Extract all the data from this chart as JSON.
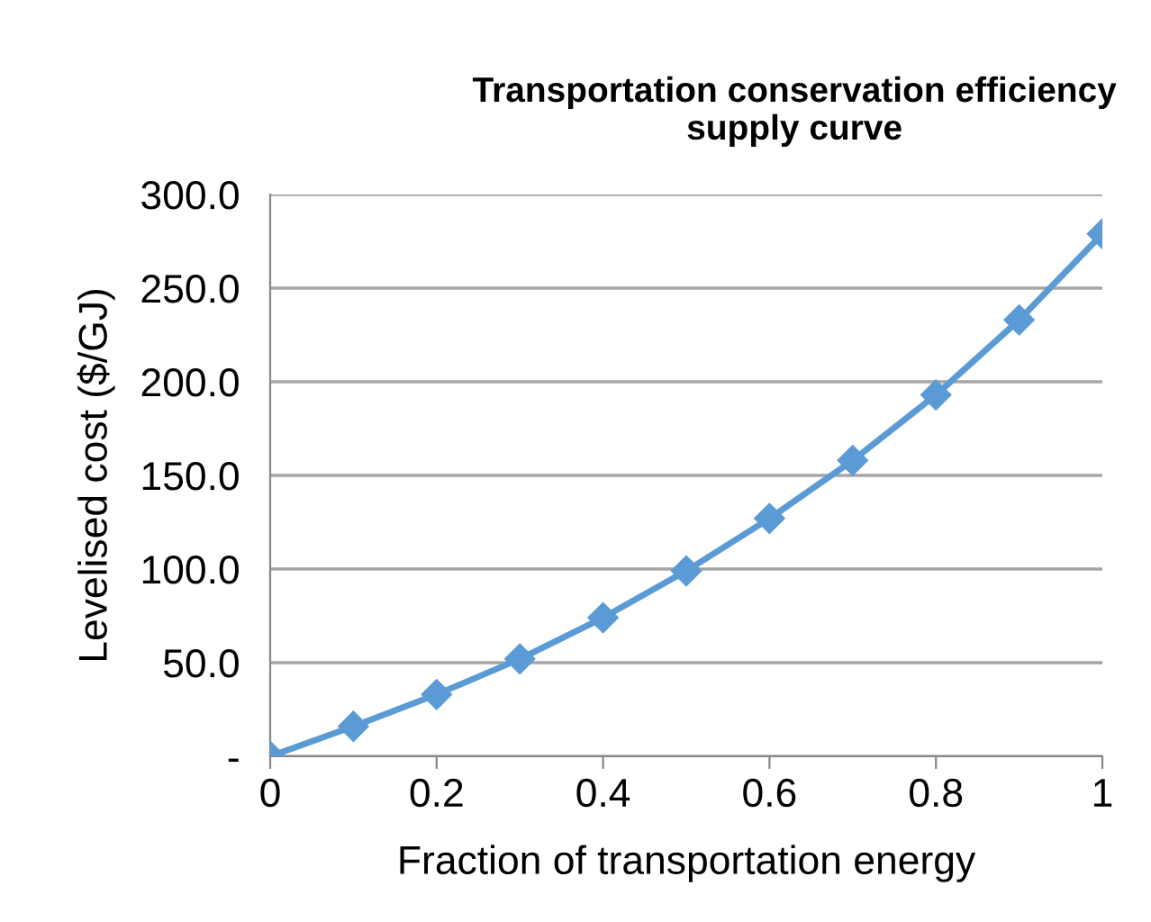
{
  "chart_data": {
    "type": "line",
    "title": "Transportation conservation efficiency\nsupply curve",
    "xlabel": "Fraction of transportation energy",
    "ylabel": "Levelised cost ($/GJ)",
    "x": [
      0,
      0.1,
      0.2,
      0.3,
      0.4,
      0.5,
      0.6,
      0.7,
      0.8,
      0.9,
      1
    ],
    "series": [
      {
        "color": "#5b9bd5",
        "values": [
          0,
          16,
          33,
          52,
          74,
          99,
          127,
          158,
          193,
          233,
          279
        ]
      }
    ],
    "xlim": [
      0,
      1
    ],
    "xticks": [
      0,
      0.2,
      0.4,
      0.6,
      0.8,
      1
    ],
    "ylim": [
      0,
      300
    ],
    "yticks": [
      {
        "value": 0,
        "label": "-"
      },
      {
        "value": 50,
        "label": "50.0"
      },
      {
        "value": 100,
        "label": "100.0"
      },
      {
        "value": 150,
        "label": "150.0"
      },
      {
        "value": 200,
        "label": "200.0"
      },
      {
        "value": 250,
        "label": "250.0"
      },
      {
        "value": 300,
        "label": "300.0"
      }
    ],
    "grid": "y",
    "marker": "diamond",
    "line_style": "solid"
  }
}
